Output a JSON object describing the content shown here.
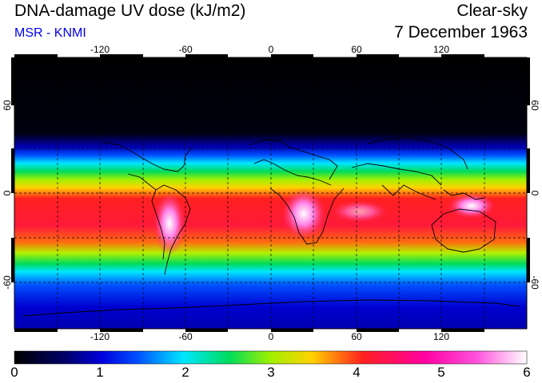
{
  "header": {
    "title": "DNA-damage UV dose (kJ/m2)",
    "source": "MSR - KNMI",
    "condition": "Clear-sky",
    "date": "7 December 1963"
  },
  "map": {
    "lon_ticks": [
      "-120",
      "-60",
      "0",
      "60",
      "120"
    ],
    "lat_ticks": [
      "60",
      "0",
      "-60"
    ],
    "palette_colors": [
      "#000000",
      "#0000b4",
      "#0050ff",
      "#00e6ff",
      "#00dc5a",
      "#a0f000",
      "#ffd200",
      "#ff2020",
      "#ff00b4",
      "#ffffff"
    ]
  },
  "colorbar": {
    "labels": [
      "0",
      "1",
      "2",
      "3",
      "4",
      "5",
      "6"
    ],
    "min": 0,
    "max": 6
  }
}
